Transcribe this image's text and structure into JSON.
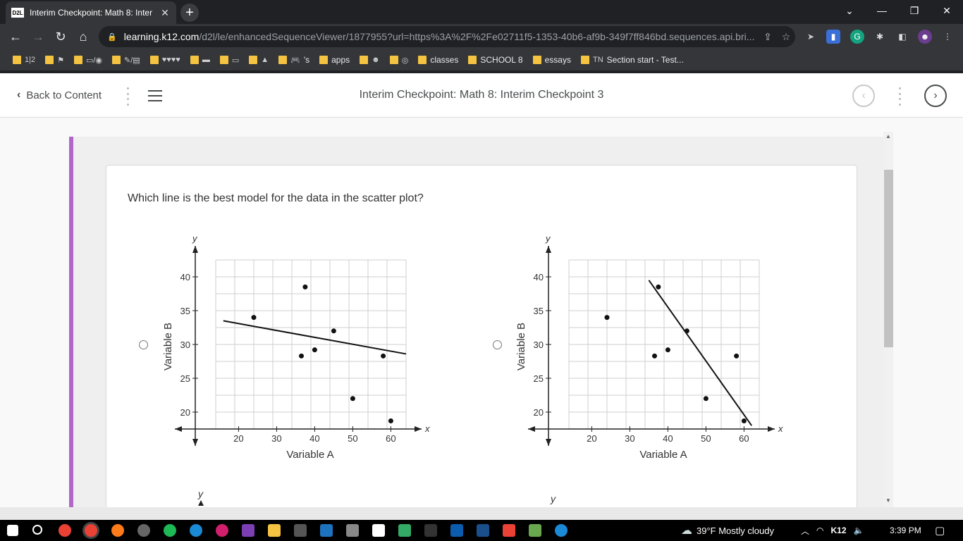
{
  "browser": {
    "tab_title": "Interim Checkpoint: Math 8: Inter",
    "tab_favicon_text": "D2L",
    "url_domain": "learning.k12.com",
    "url_rest": "/d2l/le/enhancedSequenceViewer/1877955?url=https%3A%2F%2Fe02711f5-1353-40b6-af9b-349f7ff846bd.sequences.api.bri...",
    "bookmarks": [
      {
        "label": "",
        "glyph": "1|2"
      },
      {
        "label": "",
        "glyph": "⚑"
      },
      {
        "label": "",
        "glyph": "▭/◉"
      },
      {
        "label": "",
        "glyph": "✎/▤"
      },
      {
        "label": "",
        "glyph": "♥♥♥♥"
      },
      {
        "label": "",
        "glyph": "▬"
      },
      {
        "label": "",
        "glyph": "▭"
      },
      {
        "label": "",
        "glyph": "▲"
      },
      {
        "label": "'s",
        "glyph": "🎮"
      },
      {
        "label": "apps",
        "glyph": ""
      },
      {
        "label": "",
        "glyph": "☻"
      },
      {
        "label": "",
        "glyph": "◎"
      },
      {
        "label": "classes",
        "glyph": ""
      },
      {
        "label": "SCHOOL 8",
        "glyph": ""
      },
      {
        "label": "essays",
        "glyph": ""
      },
      {
        "label": "Section start - Test...",
        "glyph": "TN"
      }
    ]
  },
  "header": {
    "back_label": "Back to Content",
    "page_title": "Interim Checkpoint: Math 8: Interim Checkpoint 3"
  },
  "question": {
    "text": "Which line is the best model for the data in the scatter plot?"
  },
  "chart_data": [
    {
      "type": "scatter",
      "title": "",
      "xlabel": "Variable A",
      "ylabel": "Variable B",
      "x_axis_letter": "x",
      "y_axis_letter": "y",
      "x_ticks": [
        20,
        30,
        40,
        50,
        60
      ],
      "y_ticks": [
        20,
        25,
        30,
        35,
        40
      ],
      "points": [
        [
          24,
          34
        ],
        [
          37.5,
          38.5
        ],
        [
          36.5,
          28.3
        ],
        [
          40,
          29.2
        ],
        [
          45,
          32
        ],
        [
          50,
          22
        ],
        [
          58,
          28.3
        ],
        [
          60,
          18.7
        ]
      ],
      "line": [
        [
          16,
          33.5
        ],
        [
          64,
          28.6
        ]
      ]
    },
    {
      "type": "scatter",
      "title": "",
      "xlabel": "Variable A",
      "ylabel": "Variable B",
      "x_axis_letter": "x",
      "y_axis_letter": "y",
      "x_ticks": [
        20,
        30,
        40,
        50,
        60
      ],
      "y_ticks": [
        20,
        25,
        30,
        35,
        40
      ],
      "points": [
        [
          24,
          34
        ],
        [
          37.5,
          38.5
        ],
        [
          36.5,
          28.3
        ],
        [
          40,
          29.2
        ],
        [
          45,
          32
        ],
        [
          50,
          22
        ],
        [
          58,
          28.3
        ],
        [
          60,
          18.7
        ]
      ],
      "line": [
        [
          35,
          39.5
        ],
        [
          62,
          18
        ]
      ]
    }
  ],
  "next_chart_labels": [
    "y",
    "y"
  ],
  "taskbar": {
    "weather": "39°F  Mostly cloudy",
    "time": "3:39 PM",
    "k12": "K12"
  }
}
